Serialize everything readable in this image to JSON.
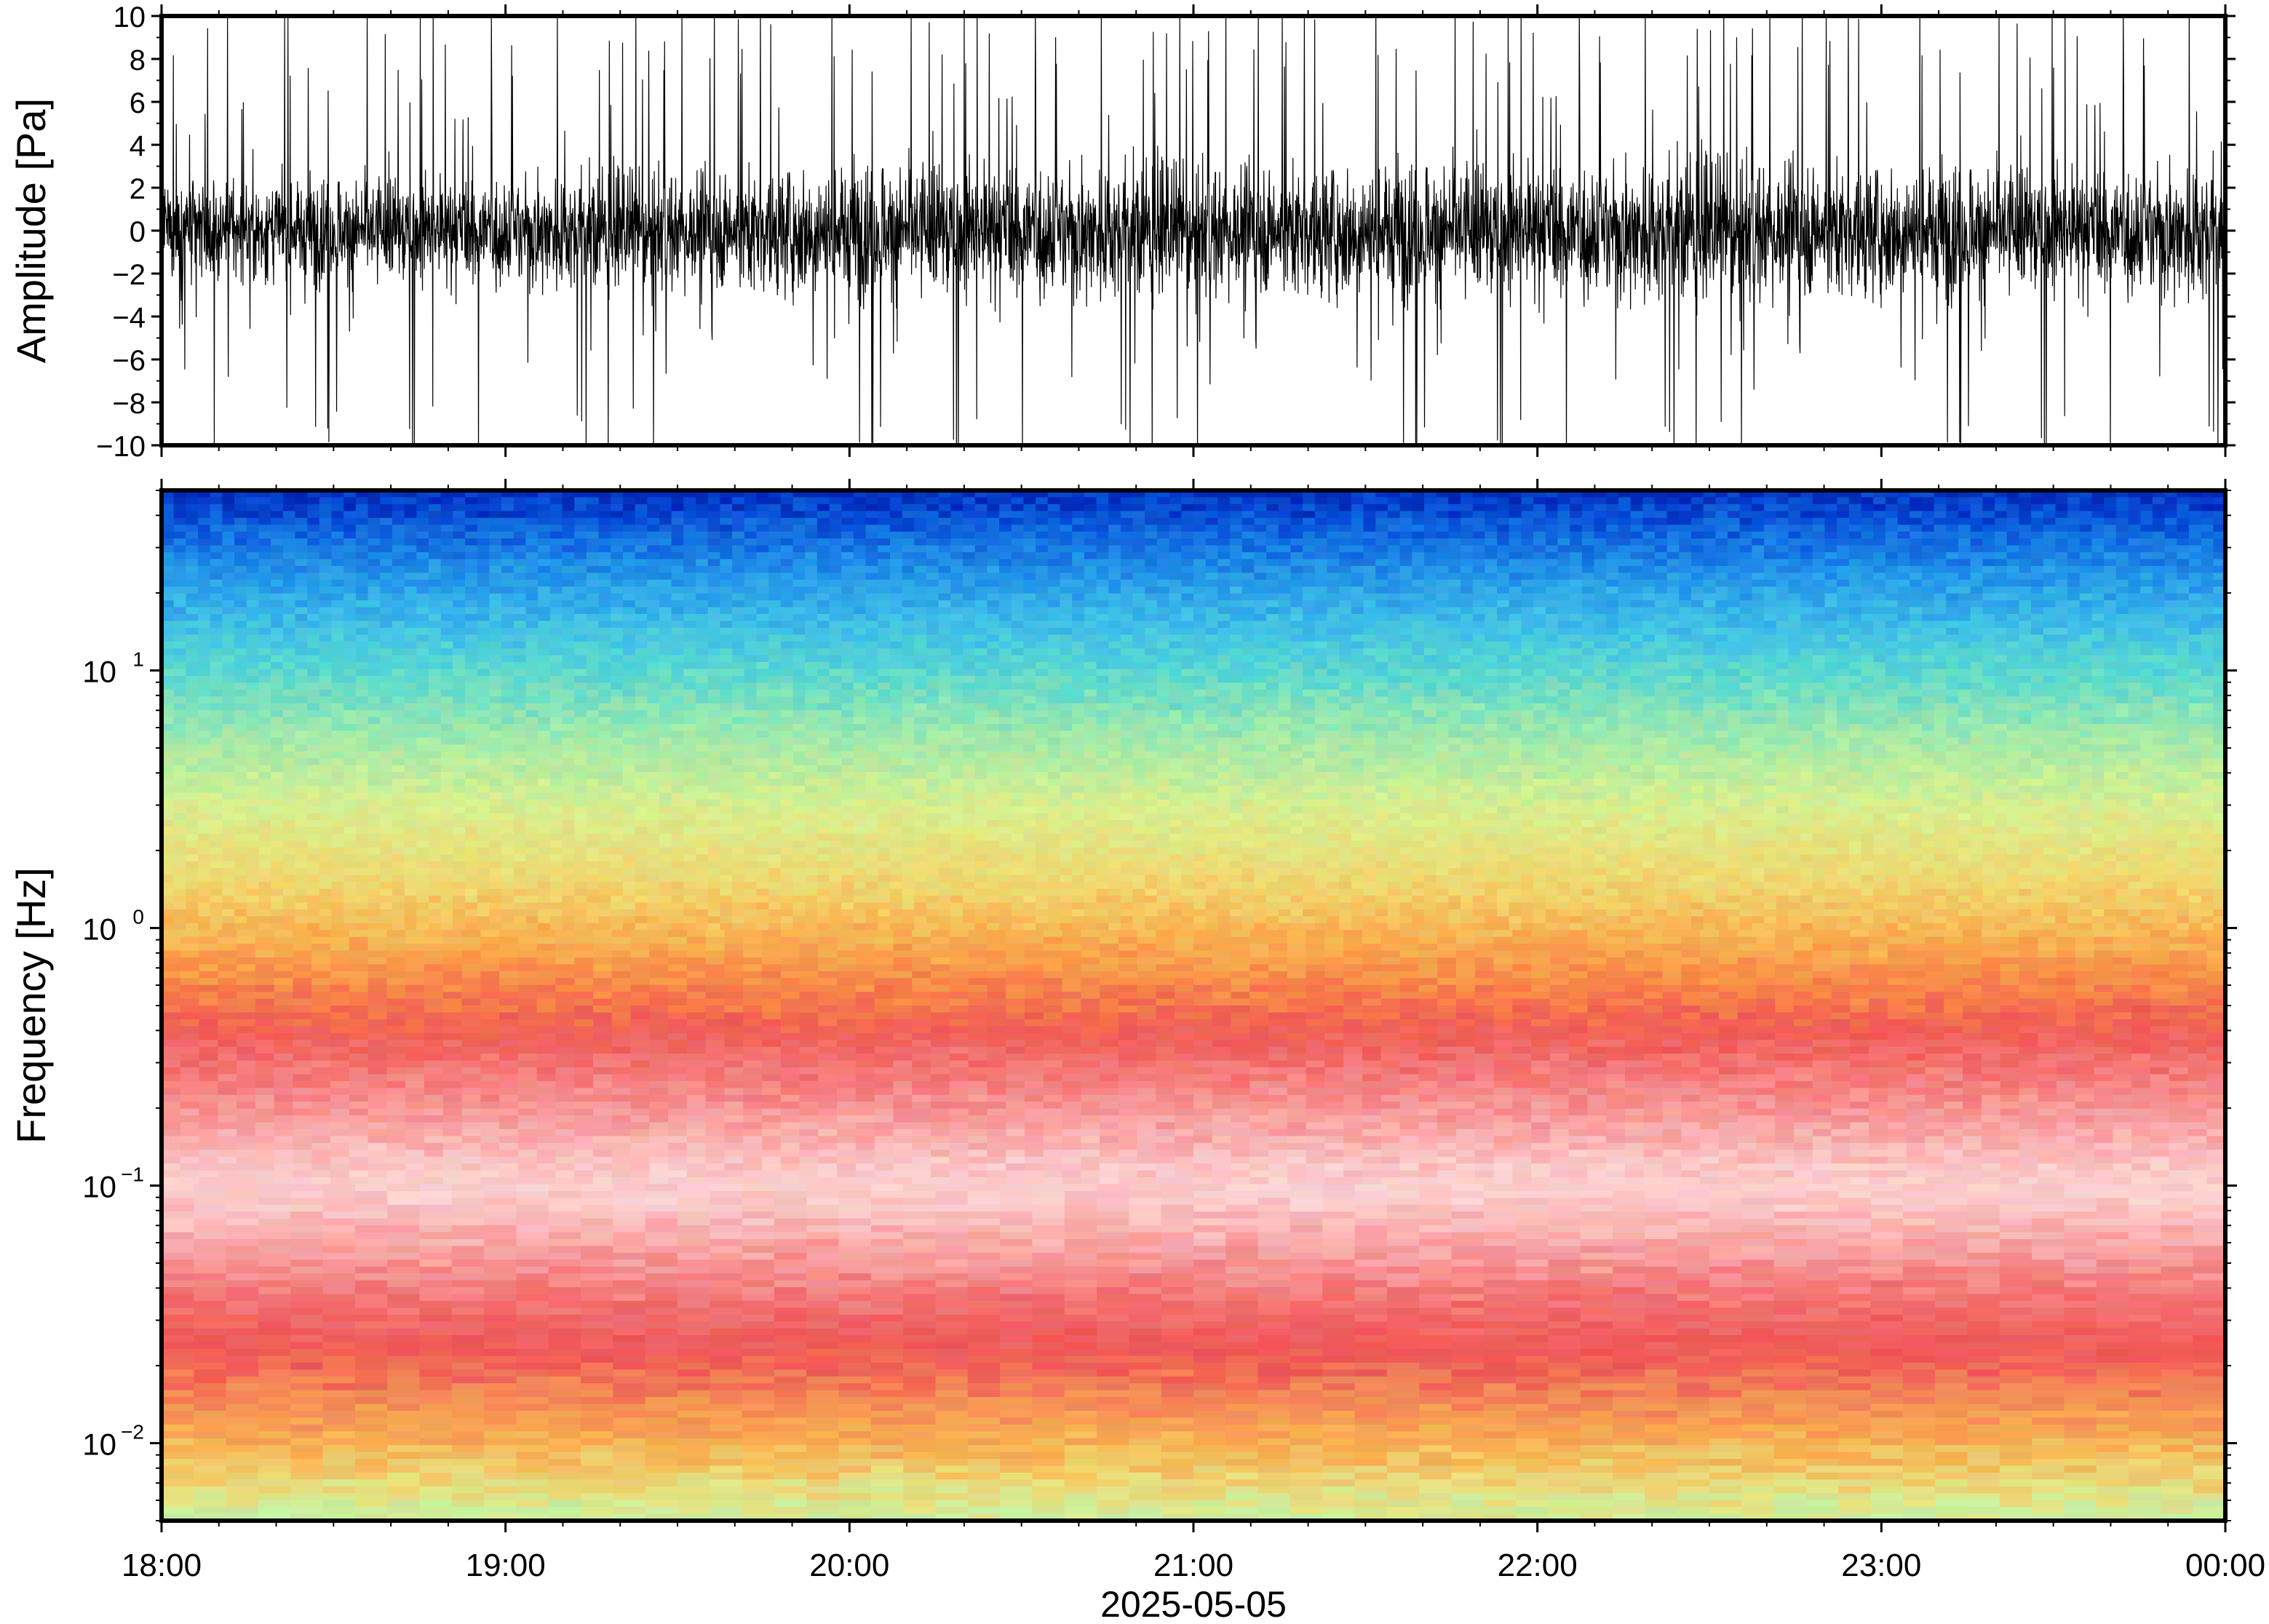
{
  "chart_data": [
    {
      "type": "line",
      "panel": "waveform",
      "ylabel": "Amplitude [Pa]",
      "ylim": [
        -10,
        10
      ],
      "yticks": [
        -10,
        -8,
        -6,
        -4,
        -2,
        0,
        2,
        4,
        6,
        8,
        10
      ],
      "ytick_labels": [
        "−10",
        "−8",
        "−6",
        "−4",
        "−2",
        "0",
        "2",
        "4",
        "6",
        "8",
        "10"
      ],
      "xlim": [
        "2025-05-05T18:00",
        "2025-05-06T00:00"
      ],
      "color": "#000000",
      "envelope": {
        "time": [
          "18:00",
          "18:30",
          "19:00",
          "19:30",
          "20:00",
          "20:30",
          "21:00",
          "21:30",
          "22:00",
          "22:30",
          "23:00",
          "23:30",
          "00:00"
        ],
        "typical_abs_amplitude": [
          3.5,
          4.0,
          4.5,
          4.5,
          5.0,
          5.5,
          5.0,
          5.0,
          5.5,
          5.5,
          5.0,
          5.0,
          5.5
        ],
        "peak_abs_amplitude": [
          8.5,
          9.5,
          10,
          9.5,
          10,
          10,
          10,
          10,
          10,
          10,
          10,
          10,
          10
        ]
      },
      "grid": false
    },
    {
      "type": "heatmap",
      "panel": "spectrogram",
      "ylabel": "Frequency [Hz]",
      "xlabel": "2025-05-05",
      "yscale": "log",
      "ylim": [
        0.005,
        50
      ],
      "yticks": [
        0.01,
        0.1,
        1,
        10
      ],
      "ytick_labels": [
        {
          "base": "10",
          "exp": "−2"
        },
        {
          "base": "10",
          "exp": "−1"
        },
        {
          "base": "10",
          "exp": "0"
        },
        {
          "base": "10",
          "exp": "1"
        }
      ],
      "xlim": [
        "2025-05-05T18:00",
        "2025-05-06T00:00"
      ],
      "xticks": [
        "18:00",
        "19:00",
        "20:00",
        "21:00",
        "22:00",
        "23:00",
        "00:00"
      ],
      "colormap": [
        "#0030c8",
        "#1a78e6",
        "#40c8e0",
        "#80e8b8",
        "#e8f08a",
        "#f8c858",
        "#f89040",
        "#f05050",
        "#f8a0a0",
        "#fde0e0"
      ],
      "band_profile": [
        {
          "freq": 50,
          "color": "#0028b8"
        },
        {
          "freq": 40,
          "color": "#0850d8"
        },
        {
          "freq": 25,
          "color": "#2090e8"
        },
        {
          "freq": 15,
          "color": "#40c0e8"
        },
        {
          "freq": 10,
          "color": "#58d8d0"
        },
        {
          "freq": 6,
          "color": "#98e8b0"
        },
        {
          "freq": 3,
          "color": "#d8f090"
        },
        {
          "freq": 1.5,
          "color": "#f0d870"
        },
        {
          "freq": 0.9,
          "color": "#f8b050"
        },
        {
          "freq": 0.6,
          "color": "#f88848"
        },
        {
          "freq": 0.4,
          "color": "#f05a55"
        },
        {
          "freq": 0.25,
          "color": "#f58080"
        },
        {
          "freq": 0.15,
          "color": "#f9b0b0"
        },
        {
          "freq": 0.1,
          "color": "#fcd4d4"
        },
        {
          "freq": 0.06,
          "color": "#f8a8a8"
        },
        {
          "freq": 0.035,
          "color": "#f27070"
        },
        {
          "freq": 0.022,
          "color": "#ef5555"
        },
        {
          "freq": 0.015,
          "color": "#f48858"
        },
        {
          "freq": 0.01,
          "color": "#f8b050"
        },
        {
          "freq": 0.0065,
          "color": "#e8e080"
        },
        {
          "freq": 0.005,
          "color": "#c8f0a0"
        }
      ],
      "grid": false
    }
  ]
}
